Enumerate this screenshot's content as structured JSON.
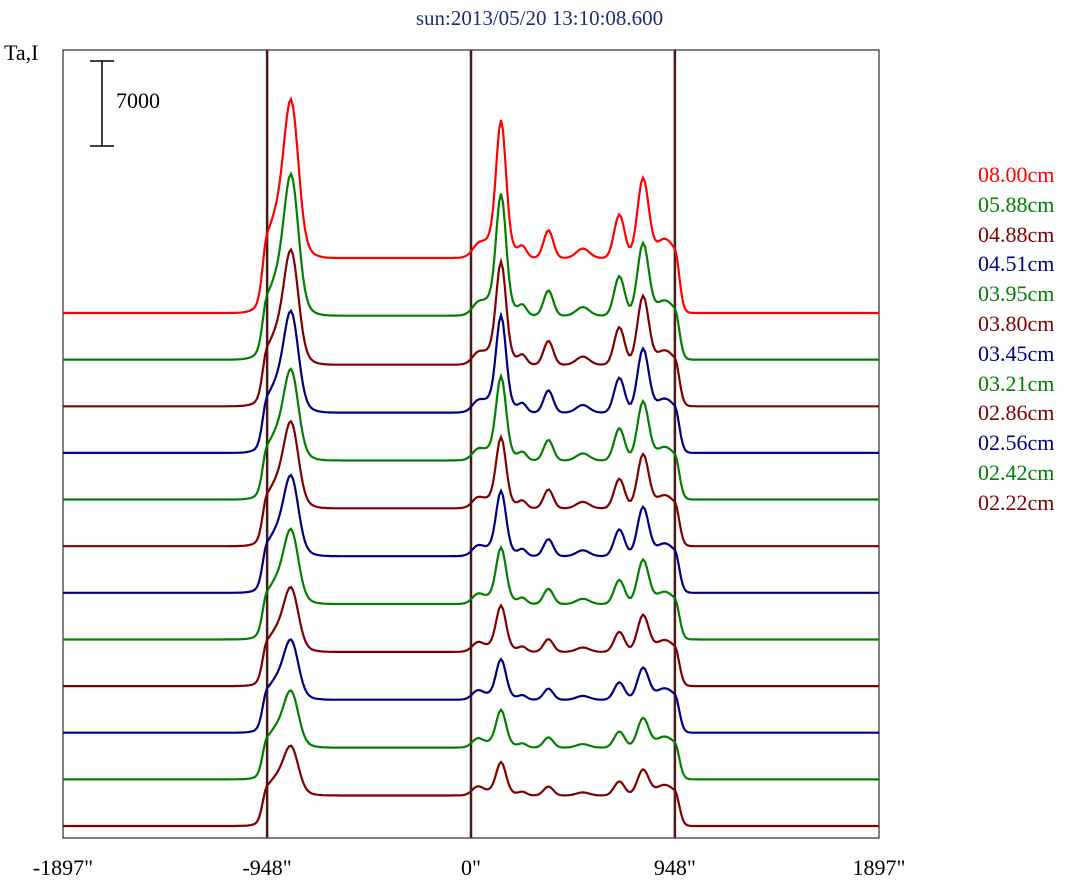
{
  "title": "sun:2013/05/20 13:10:08.600",
  "ylabel": "Ta,I",
  "scale_bar_label": "7000",
  "chart_data": {
    "type": "line",
    "title": "sun:2013/05/20 13:10:08.600",
    "ylabel": "Ta,I",
    "x_ticks": [
      "-1897\"",
      "-948\"",
      "0\"",
      "948\"",
      "1897\""
    ],
    "x_tick_values": [
      -1897,
      -948,
      0,
      948,
      1897
    ],
    "xlim": [
      -1897,
      1897
    ],
    "vertical_markers": [
      -948,
      0,
      948
    ],
    "scale_bar": 7000,
    "grid": false,
    "legend_position": "right",
    "stacked_offset": true,
    "series": [
      {
        "name": "08.00cm",
        "color": "#ff0000",
        "peak_left": 15000,
        "peak_right1": 14000,
        "peak_right2": 11000,
        "plateau": 4500
      },
      {
        "name": "05.88cm",
        "color": "#008000",
        "peak_left": 13000,
        "peak_right1": 12000,
        "peak_right2": 9500,
        "plateau": 3600
      },
      {
        "name": "04.88cm",
        "color": "#800000",
        "peak_left": 11000,
        "peak_right1": 10500,
        "peak_right2": 9000,
        "plateau": 3400
      },
      {
        "name": "04.51cm",
        "color": "#000080",
        "peak_left": 10000,
        "peak_right1": 10000,
        "peak_right2": 8500,
        "plateau": 3300
      },
      {
        "name": "03.95cm",
        "color": "#008000",
        "peak_left": 9200,
        "peak_right1": 9000,
        "peak_right2": 8000,
        "plateau": 3200
      },
      {
        "name": "03.80cm",
        "color": "#800000",
        "peak_left": 8800,
        "peak_right1": 8000,
        "peak_right2": 7500,
        "plateau": 3100
      },
      {
        "name": "03.45cm",
        "color": "#000080",
        "peak_left": 8300,
        "peak_right1": 7500,
        "peak_right2": 7000,
        "plateau": 3000
      },
      {
        "name": "03.21cm",
        "color": "#008000",
        "peak_left": 7800,
        "peak_right1": 6800,
        "peak_right2": 6500,
        "plateau": 2900
      },
      {
        "name": "02.86cm",
        "color": "#800000",
        "peak_left": 7000,
        "peak_right1": 6000,
        "peak_right2": 5800,
        "plateau": 2800
      },
      {
        "name": "02.56cm",
        "color": "#000080",
        "peak_left": 6600,
        "peak_right1": 5500,
        "peak_right2": 5300,
        "plateau": 2700
      },
      {
        "name": "02.42cm",
        "color": "#008000",
        "peak_left": 6300,
        "peak_right1": 5200,
        "peak_right2": 5000,
        "plateau": 2600
      },
      {
        "name": "02.22cm",
        "color": "#800000",
        "peak_left": 5700,
        "peak_right1": 4800,
        "peak_right2": 4600,
        "plateau": 2500
      }
    ]
  }
}
